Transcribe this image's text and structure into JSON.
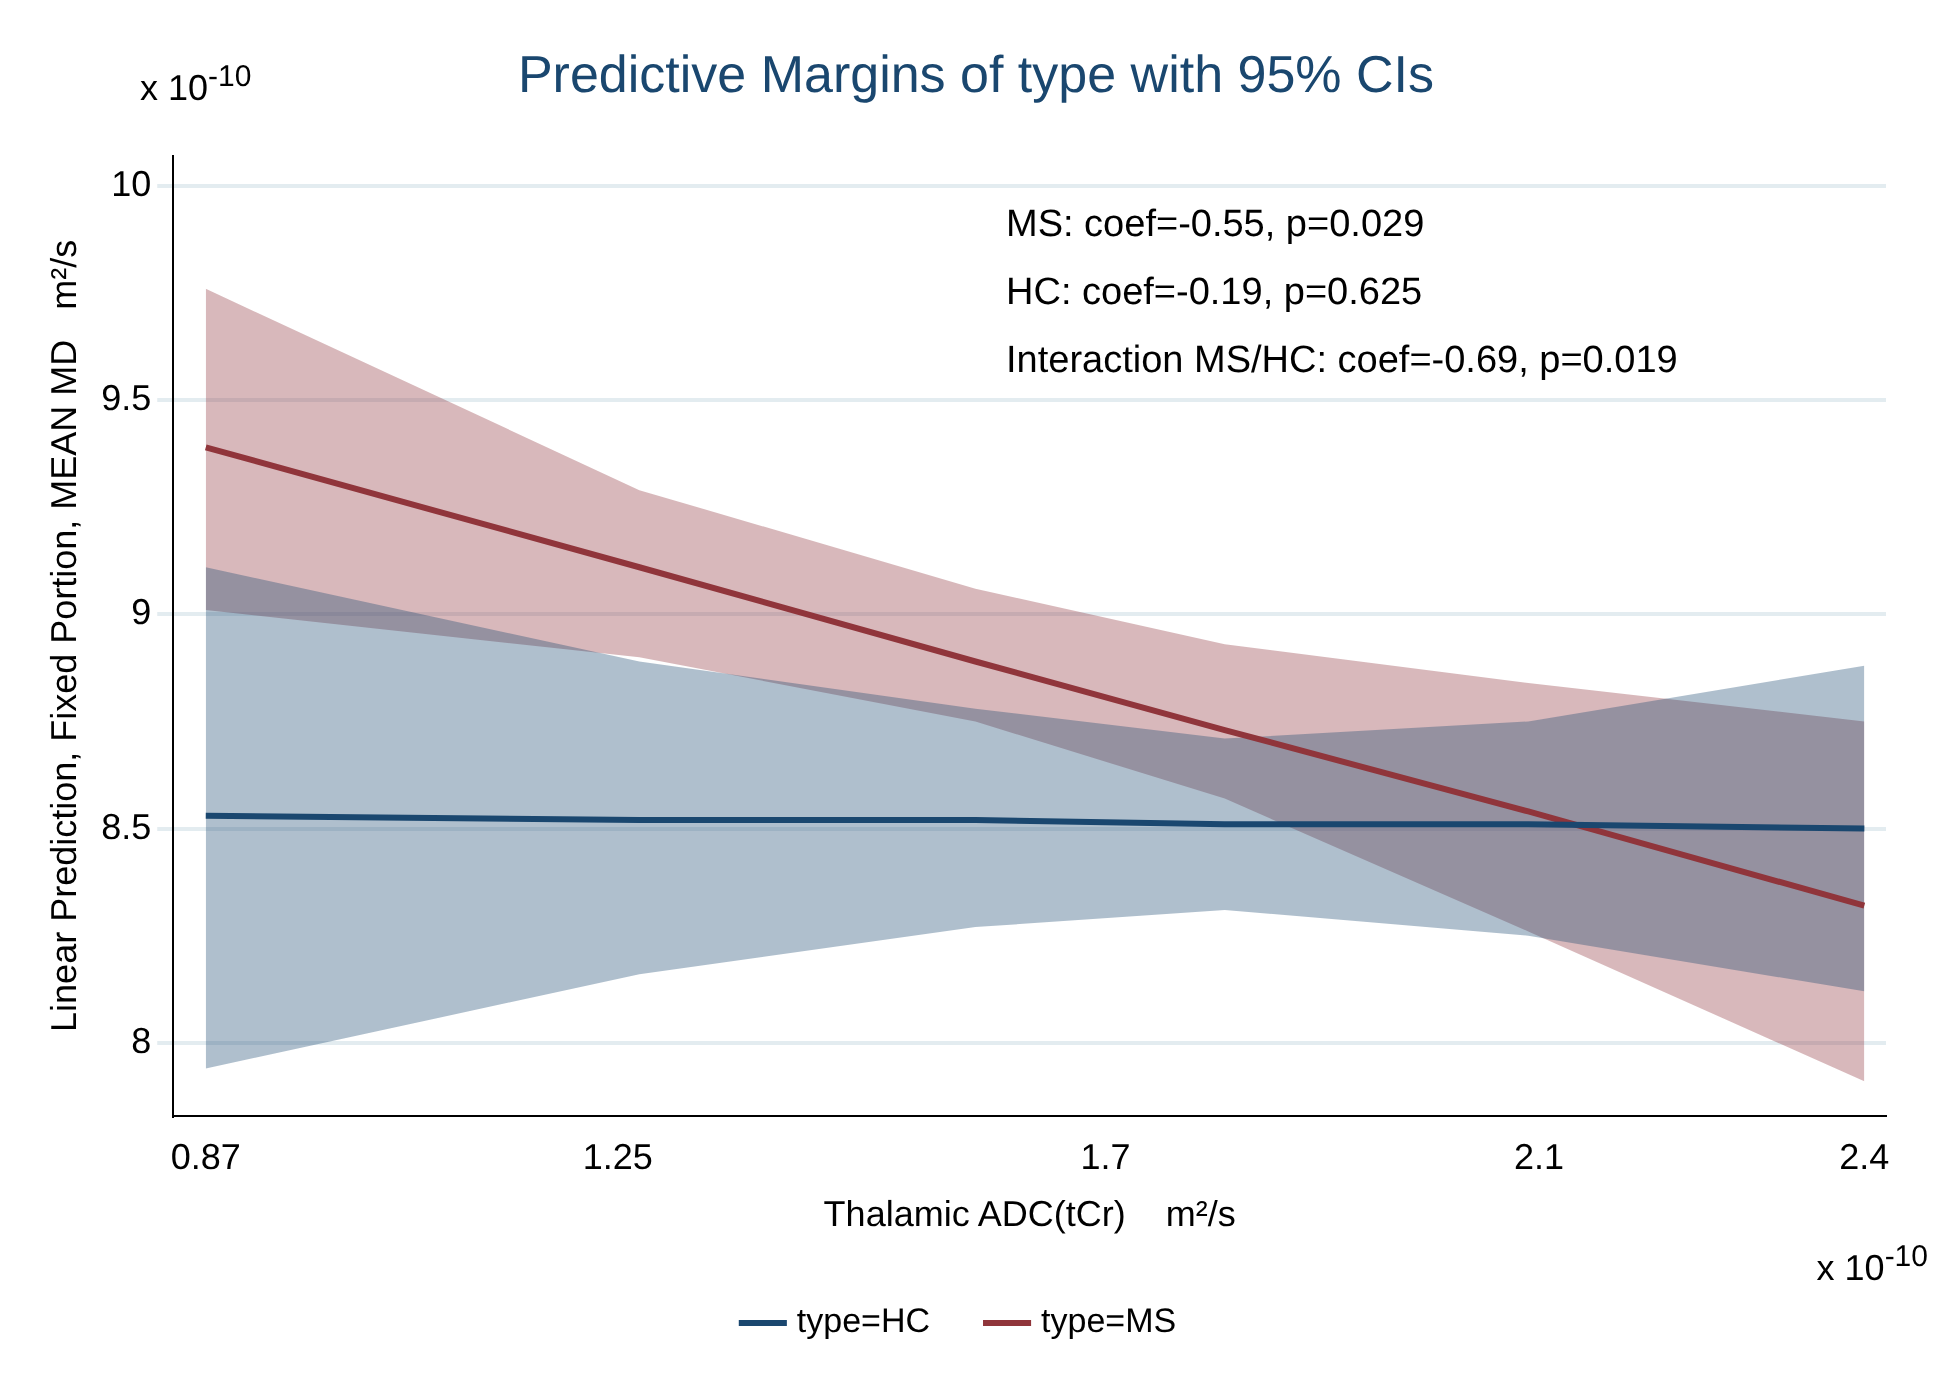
{
  "chart_data": {
    "type": "line",
    "title": "Predictive Margins of type with 95% CIs",
    "xlabel": "Thalamic ADC(tCr)    m²/s",
    "ylabel": "Linear Prediction, Fixed Portion, MEAN MD   m²/s",
    "annotations": [
      "x 10$^{-10}$",
      "x 10$^{-10}$",
      "MS: coef=-0.55, p=0.029",
      "HC: coef=-0.19, p=0.625",
      "Interaction MS/HC: coef=-0.69, p=0.019"
    ],
    "series": [
      {
        "name": "type=HC",
        "color": "#1a476f",
        "x": [
          0.87,
          1.27,
          1.58,
          1.81,
          2.09,
          2.4
        ],
        "values": [
          8.53,
          8.52,
          8.52,
          8.51,
          8.51,
          8.5
        ],
        "lower": [
          7.94,
          8.16,
          8.27,
          8.31,
          8.25,
          8.12
        ],
        "upper": [
          9.11,
          8.89,
          8.78,
          8.71,
          8.75,
          8.88
        ]
      },
      {
        "name": "type=MS",
        "color": "#90353b",
        "x": [
          0.87,
          1.27,
          1.58,
          1.81,
          2.09,
          2.4
        ],
        "values": [
          9.39,
          9.11,
          8.89,
          8.73,
          8.54,
          8.32
        ],
        "lower": [
          9.01,
          8.9,
          8.75,
          8.57,
          8.26,
          7.91
        ],
        "upper": [
          9.76,
          9.29,
          9.06,
          8.93,
          8.84,
          8.75
        ]
      }
    ],
    "xlim": [
      0.84,
      2.42
    ],
    "xticks": [
      0.87,
      1.25,
      1.7,
      2.1,
      2.4
    ],
    "ylim": [
      7.83,
      10.07
    ],
    "yticks": [
      8,
      8.5,
      9,
      9.5,
      10
    ],
    "grid": "y",
    "legend": "bottom",
    "marker": "none",
    "line_style": "solid"
  }
}
